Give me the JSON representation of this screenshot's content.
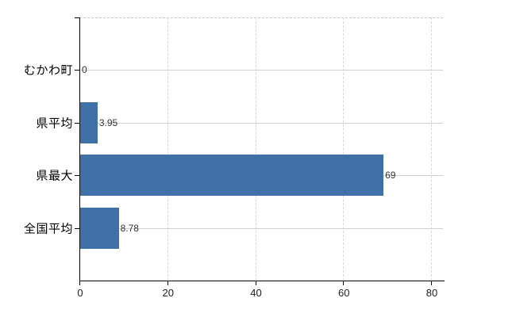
{
  "chart_data": {
    "type": "bar",
    "orientation": "horizontal",
    "title": "",
    "xlabel": "",
    "ylabel": "",
    "categories": [
      "むかわ町",
      "県平均",
      "県最大",
      "全国平均"
    ],
    "values": [
      0,
      3.95,
      69,
      8.78
    ],
    "value_labels": [
      "0",
      "3.95",
      "69",
      "8.78"
    ],
    "x_ticks": [
      0,
      20,
      40,
      60,
      80
    ],
    "x_tick_labels": [
      "0",
      "20",
      "40",
      "60",
      "80"
    ],
    "xlim": [
      0,
      83
    ],
    "grid": true,
    "legend": "none",
    "colors": {
      "bar": "#4070a8",
      "axis": "#000000",
      "h_gridline": "#ccd5cb",
      "v_gridline": "#d8d8dc",
      "top_border": "#c9c9c9",
      "category_text": "#000000",
      "value_text": "#333333",
      "tick_text": "#222222",
      "background": "#ffffff"
    }
  }
}
